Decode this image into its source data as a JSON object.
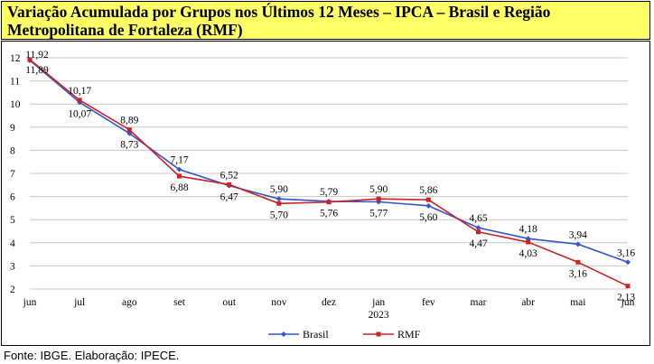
{
  "title": "Variação Acumulada por Grupos nos Últimos 12 Meses – IPCA – Brasil e Região Metropolitana de Fortaleza (RMF)",
  "source": "Fonte: IBGE. Elaboração: IPECE.",
  "chart_data": {
    "type": "line",
    "categories": [
      "jun",
      "jul",
      "ago",
      "set",
      "out",
      "nov",
      "dez",
      "jan",
      "fev",
      "mar",
      "abr",
      "mai",
      "jun"
    ],
    "year_label": "2023",
    "ylim": [
      2,
      12
    ],
    "yticks": [
      2,
      3,
      4,
      5,
      6,
      7,
      8,
      9,
      10,
      11,
      12
    ],
    "grid": true,
    "legend_position": "bottom",
    "series": [
      {
        "name": "Brasil",
        "color": "#3355cc",
        "marker": "diamond",
        "values": [
          11.89,
          10.07,
          8.73,
          7.17,
          6.47,
          5.9,
          5.79,
          5.77,
          5.6,
          4.65,
          4.18,
          3.94,
          3.16
        ]
      },
      {
        "name": "RMF",
        "color": "#cc2222",
        "marker": "square",
        "values": [
          11.92,
          10.17,
          8.89,
          6.88,
          6.52,
          5.7,
          5.76,
          5.9,
          5.86,
          4.47,
          4.03,
          3.16,
          2.13
        ]
      }
    ],
    "labels": {
      "Brasil": [
        "11,89",
        "10,07",
        "8,73",
        "7,17",
        "6,47",
        "5,90",
        "5,79",
        "5,77",
        "5,60",
        "4,65",
        "4,18",
        "3,94",
        "3,16"
      ],
      "RMF": [
        "11,92",
        "10,17",
        "8,89",
        "6,88",
        "6,52",
        "5,70",
        "5,76",
        "5,90",
        "5,86",
        "4,47",
        "4,03",
        "3,16",
        "2,13"
      ]
    }
  }
}
